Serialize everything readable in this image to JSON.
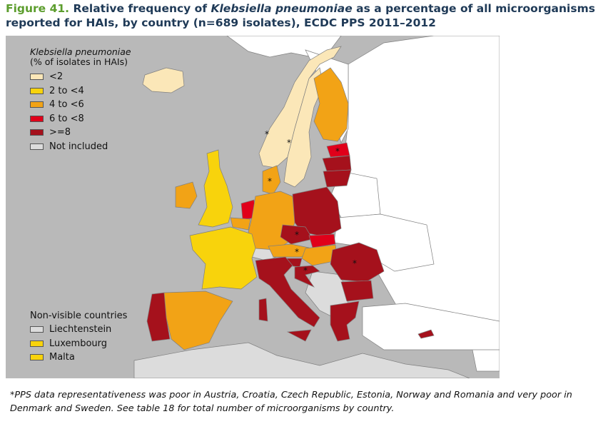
{
  "title": {
    "figure_label": "Figure 41.",
    "text_before": "Relative frequency of",
    "organism": "Klebsiella pneumoniae",
    "text_after": "as a percentage of all microorganisms reported for HAIs, by country (n=689 isolates), ECDC PPS 2011–2012"
  },
  "legend": {
    "title": "Klebsiella pneumoniae",
    "subtitle": "(% of isolates in HAIs)",
    "categories": [
      {
        "label": "<2",
        "color": "#fbe7b8"
      },
      {
        "label": "2 to <4",
        "color": "#f8d30c"
      },
      {
        "label": "4 to <6",
        "color": "#f2a316"
      },
      {
        "label": "6 to <8",
        "color": "#e0001a"
      },
      {
        "label": ">=8",
        "color": "#a5111c"
      },
      {
        "label": "Not included",
        "color": "#dcdcdc"
      }
    ]
  },
  "non_visible": {
    "title": "Non-visible countries",
    "items": [
      {
        "label": "Liechtenstein",
        "color": "#dcdcdc"
      },
      {
        "label": "Luxembourg",
        "color": "#f8d30c"
      },
      {
        "label": "Malta",
        "color": "#f8d30c"
      }
    ]
  },
  "map": {
    "sea_color": "#b9b9b9",
    "outside_color": "#ffffff",
    "border_color": "#7f7f7f",
    "countries": [
      {
        "id": "iceland",
        "category": "<2"
      },
      {
        "id": "norway",
        "category": "<2",
        "note": "*"
      },
      {
        "id": "sweden",
        "category": "<2",
        "note": "*"
      },
      {
        "id": "finland",
        "category": "4 to <6"
      },
      {
        "id": "estonia",
        "category": "6 to <8",
        "note": "*"
      },
      {
        "id": "latvia",
        "category": ">=8"
      },
      {
        "id": "lithuania",
        "category": ">=8"
      },
      {
        "id": "denmark",
        "category": "4 to <6",
        "note": "*"
      },
      {
        "id": "united-kingdom",
        "category": "2 to <4"
      },
      {
        "id": "ireland",
        "category": "4 to <6"
      },
      {
        "id": "netherlands",
        "category": "6 to <8"
      },
      {
        "id": "belgium",
        "category": "4 to <6"
      },
      {
        "id": "germany",
        "category": "4 to <6"
      },
      {
        "id": "poland",
        "category": ">=8"
      },
      {
        "id": "czech-republic",
        "category": ">=8",
        "note": "*"
      },
      {
        "id": "slovakia",
        "category": "6 to <8"
      },
      {
        "id": "austria",
        "category": "4 to <6",
        "note": "*"
      },
      {
        "id": "hungary",
        "category": "4 to <6"
      },
      {
        "id": "slovenia",
        "category": ">=8"
      },
      {
        "id": "croatia",
        "category": ">=8",
        "note": "*"
      },
      {
        "id": "romania",
        "category": ">=8",
        "note": "*"
      },
      {
        "id": "bulgaria",
        "category": ">=8"
      },
      {
        "id": "greece",
        "category": ">=8"
      },
      {
        "id": "italy",
        "category": ">=8"
      },
      {
        "id": "france",
        "category": "2 to <4"
      },
      {
        "id": "spain",
        "category": "4 to <6"
      },
      {
        "id": "portugal",
        "category": ">=8"
      },
      {
        "id": "cyprus",
        "category": ">=8"
      },
      {
        "id": "switzerland",
        "category": "Not included"
      }
    ]
  },
  "footnote": "*PPS data representativeness was poor in Austria, Croatia, Czech Republic, Estonia, Norway and Romania and very poor in Denmark and Sweden. See table 18 for total number of microorganisms by country."
}
